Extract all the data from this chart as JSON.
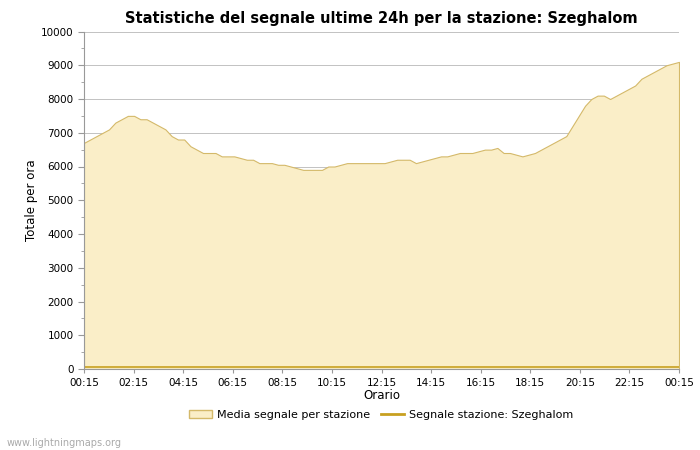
{
  "title": "Statistiche del segnale ultime 24h per la stazione: Szeghalom",
  "xlabel": "Orario",
  "ylabel": "Totale per ora",
  "fill_color": "#FAEEC8",
  "fill_edge_color": "#D4B96A",
  "line_color": "#C8A020",
  "background_color": "#ffffff",
  "grid_color": "#aaaaaa",
  "ylim": [
    0,
    10000
  ],
  "yticks": [
    0,
    1000,
    2000,
    3000,
    4000,
    5000,
    6000,
    7000,
    8000,
    9000,
    10000
  ],
  "xtick_labels": [
    "00:15",
    "02:15",
    "04:15",
    "06:15",
    "08:15",
    "10:15",
    "12:15",
    "14:15",
    "16:15",
    "18:15",
    "20:15",
    "22:15",
    "00:15"
  ],
  "watermark": "www.lightningmaps.org",
  "legend_fill_label": "Media segnale per stazione",
  "legend_line_label": "Segnale stazione: Szeghalom",
  "x_values": [
    0,
    1,
    2,
    3,
    4,
    5,
    6,
    7,
    8,
    9,
    10,
    11,
    12,
    13,
    14,
    15,
    16,
    17,
    18,
    19,
    20,
    21,
    22,
    23,
    24,
    25,
    26,
    27,
    28,
    29,
    30,
    31,
    32,
    33,
    34,
    35,
    36,
    37,
    38,
    39,
    40,
    41,
    42,
    43,
    44,
    45,
    46,
    47,
    48,
    49,
    50,
    51,
    52,
    53,
    54,
    55,
    56,
    57,
    58,
    59,
    60,
    61,
    62,
    63,
    64,
    65,
    66,
    67,
    68,
    69,
    70,
    71,
    72,
    73,
    74,
    75,
    76,
    77,
    78,
    79,
    80,
    81,
    82,
    83,
    84,
    85,
    86,
    87,
    88,
    89,
    90,
    91,
    92,
    93,
    94,
    95
  ],
  "fill_values": [
    6700,
    6800,
    6900,
    7000,
    7100,
    7300,
    7400,
    7500,
    7500,
    7400,
    7400,
    7300,
    7200,
    7100,
    6900,
    6800,
    6800,
    6600,
    6500,
    6400,
    6400,
    6400,
    6300,
    6300,
    6300,
    6250,
    6200,
    6200,
    6100,
    6100,
    6100,
    6050,
    6050,
    6000,
    5950,
    5900,
    5900,
    5900,
    5900,
    6000,
    6000,
    6050,
    6100,
    6100,
    6100,
    6100,
    6100,
    6100,
    6100,
    6150,
    6200,
    6200,
    6200,
    6100,
    6150,
    6200,
    6250,
    6300,
    6300,
    6350,
    6400,
    6400,
    6400,
    6450,
    6500,
    6500,
    6550,
    6400,
    6400,
    6350,
    6300,
    6350,
    6400,
    6500,
    6600,
    6700,
    6800,
    6900,
    7200,
    7500,
    7800,
    8000,
    8100,
    8100,
    8000,
    8100,
    8200,
    8300,
    8400,
    8600,
    8700,
    8800,
    8900,
    9000,
    9050,
    9100
  ],
  "line_values": [
    50,
    50,
    50,
    50,
    50,
    50,
    50,
    50,
    50,
    50,
    50,
    50,
    50,
    50,
    50,
    50,
    50,
    50,
    50,
    50,
    50,
    50,
    50,
    50,
    50,
    50,
    50,
    50,
    50,
    50,
    50,
    50,
    50,
    50,
    50,
    50,
    50,
    50,
    50,
    50,
    50,
    50,
    50,
    50,
    50,
    50,
    50,
    50,
    50,
    50,
    50,
    50,
    50,
    50,
    50,
    50,
    50,
    50,
    50,
    50,
    50,
    50,
    50,
    50,
    50,
    50,
    50,
    50,
    50,
    50,
    50,
    50,
    50,
    50,
    50,
    50,
    50,
    50,
    50,
    50,
    50,
    50,
    50,
    50,
    50,
    50,
    50,
    50,
    50,
    50,
    50,
    50,
    50,
    50,
    50,
    50
  ]
}
